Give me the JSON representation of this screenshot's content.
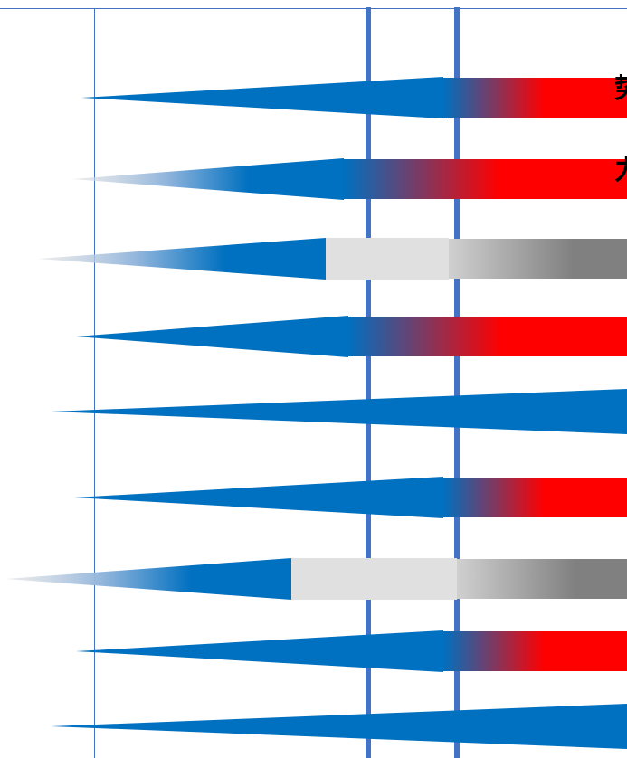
{
  "labels": {
    "row_1": "势",
    "row_2": "力"
  },
  "colors": {
    "blue": "#0070c0",
    "red": "#ff0000",
    "gray": "#808080",
    "light_gray": "#e0e0e0",
    "guide_line": "#4472c4",
    "thin_line": "#4472c4"
  },
  "rows": [
    {
      "style": "red"
    },
    {
      "style": "red"
    },
    {
      "style": "gray"
    },
    {
      "style": "red"
    },
    {
      "style": "blue"
    },
    {
      "style": "red"
    },
    {
      "style": "gray"
    },
    {
      "style": "red"
    },
    {
      "style": "blue"
    }
  ]
}
